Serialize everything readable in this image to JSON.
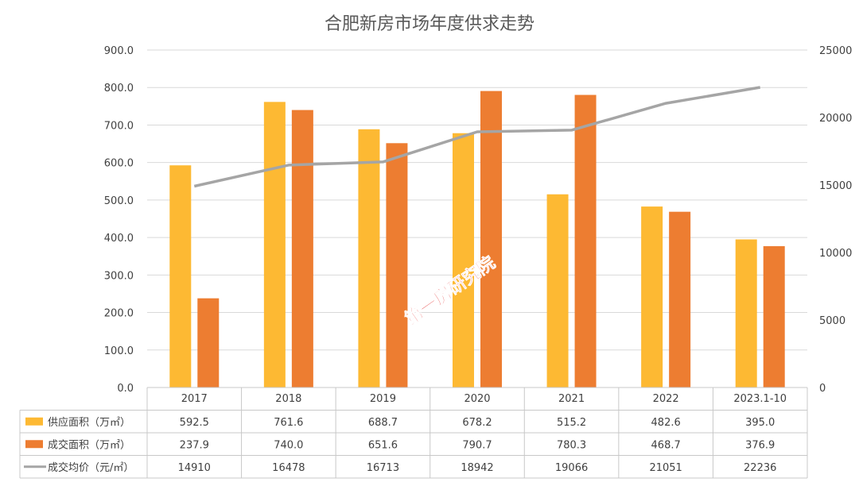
{
  "chart_data": {
    "type": "bar",
    "title": "合肥新房市场年度供求走势",
    "categories": [
      "2017",
      "2018",
      "2019",
      "2020",
      "2021",
      "2022",
      "2023.1-10"
    ],
    "series": [
      {
        "name": "供应面积（万㎡）",
        "type": "bar",
        "axis": "left",
        "values": [
          592.5,
          761.6,
          688.7,
          678.2,
          515.2,
          482.6,
          395.0
        ],
        "labels": [
          "592.5",
          "761.6",
          "688.7",
          "678.2",
          "515.2",
          "482.6",
          "395.0"
        ],
        "color": "#FDB933"
      },
      {
        "name": "成交面积（万㎡）",
        "type": "bar",
        "axis": "left",
        "values": [
          237.9,
          740.0,
          651.6,
          790.7,
          780.3,
          468.7,
          376.9
        ],
        "labels": [
          "237.9",
          "740.0",
          "651.6",
          "790.7",
          "780.3",
          "468.7",
          "376.9"
        ],
        "color": "#ED7D31"
      },
      {
        "name": "成交均价（元/㎡）",
        "type": "line",
        "axis": "right",
        "values": [
          14910,
          16478,
          16713,
          18942,
          19066,
          21051,
          22236
        ],
        "labels": [
          "14910",
          "16478",
          "16713",
          "18942",
          "19066",
          "21051",
          "22236"
        ],
        "color": "#A5A5A5"
      }
    ],
    "y_left": {
      "ylim": [
        0,
        900
      ],
      "ticks": [
        "0.0",
        "100.0",
        "200.0",
        "300.0",
        "400.0",
        "500.0",
        "600.0",
        "700.0",
        "800.0",
        "900.0"
      ]
    },
    "y_right": {
      "ylim": [
        0,
        25000
      ],
      "ticks": [
        "0",
        "5000",
        "10000",
        "15000",
        "20000",
        "25000"
      ]
    },
    "grid": true,
    "legend": "data-table"
  },
  "watermark": "第一房研究院"
}
